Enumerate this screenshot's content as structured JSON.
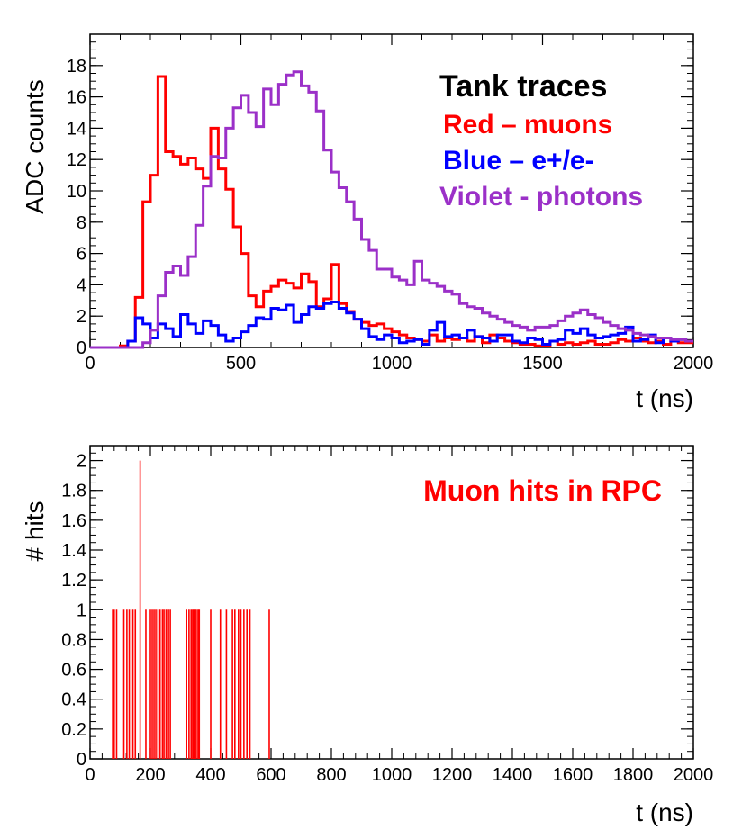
{
  "chart_data": [
    {
      "type": "line",
      "style": "step-histogram",
      "title": "",
      "xlabel": "t (ns)",
      "ylabel": "ADC counts",
      "xlim": [
        0,
        2000
      ],
      "ylim": [
        0,
        20
      ],
      "x_ticks": [
        0,
        500,
        1000,
        1500,
        2000
      ],
      "y_ticks": [
        0,
        2,
        4,
        6,
        8,
        10,
        12,
        14,
        16,
        18
      ],
      "bin_width": 25,
      "legend": {
        "title": "Tank traces",
        "entries": [
          {
            "label": "Red – muons",
            "color": "#ff0000"
          },
          {
            "label": "Blue – e+/e-",
            "color": "#0000ff"
          },
          {
            "label": "Violet - photons",
            "color": "#9b30c8"
          }
        ],
        "placement": "top-right"
      },
      "series": [
        {
          "name": "muons",
          "color": "#ff0000",
          "values": [
            0,
            0,
            0,
            0,
            0.1,
            0.4,
            3.2,
            9.3,
            11.0,
            17.3,
            12.5,
            12.2,
            11.7,
            12.1,
            11.4,
            10.8,
            14.0,
            11.4,
            10.1,
            7.7,
            6.0,
            3.3,
            2.6,
            3.6,
            3.9,
            4.3,
            4.1,
            3.8,
            4.7,
            4.2,
            2.6,
            3.1,
            5.3,
            2.8,
            2.3,
            1.8,
            1.6,
            1.4,
            1.5,
            1.2,
            1.0,
            0.8,
            0.6,
            0.5,
            0.4,
            0.8,
            0.4,
            0.6,
            0.5,
            0.6,
            0.4,
            0.7,
            0.3,
            0.8,
            0.6,
            0.4,
            0.3,
            0.2,
            0.2,
            0.1,
            0.1,
            0.4,
            0.2,
            0.3,
            0.2,
            0.3,
            0.4,
            0.2,
            0.2,
            0.3,
            0.5,
            0.4,
            0.6,
            0.4,
            0.3,
            0.4,
            0.2,
            0.4,
            0.3,
            0.3
          ]
        },
        {
          "name": "e+/e-",
          "color": "#0000ff",
          "values": [
            0,
            0,
            0,
            0,
            0,
            0.4,
            1.9,
            1.5,
            0.6,
            1.5,
            1.2,
            0.7,
            2.1,
            1.5,
            0.9,
            1.7,
            1.4,
            0.8,
            0.4,
            0.6,
            1.0,
            1.4,
            1.9,
            1.8,
            2.5,
            2.4,
            2.7,
            1.6,
            2.1,
            2.6,
            2.5,
            2.8,
            2.9,
            2.5,
            2.2,
            1.8,
            1.2,
            0.7,
            0.5,
            0.8,
            0.6,
            0.3,
            0.4,
            0.5,
            0.2,
            1.1,
            1.6,
            0.7,
            0.8,
            0.6,
            1.1,
            0.7,
            0.6,
            0.4,
            0.8,
            0.8,
            0.4,
            0.3,
            0.6,
            0.5,
            0.2,
            0.4,
            0.5,
            1.1,
            0.9,
            1.2,
            0.8,
            0.6,
            0.7,
            0.8,
            0.9,
            1.3,
            0.4,
            0.5,
            0.8,
            0.3,
            0.6,
            0.4,
            0.5,
            0.4
          ]
        },
        {
          "name": "photons",
          "color": "#9b30c8",
          "values": [
            0,
            0,
            0,
            0,
            0,
            0,
            0,
            0.3,
            1.1,
            3.3,
            4.8,
            5.2,
            4.6,
            5.8,
            7.8,
            10.3,
            12.2,
            12.1,
            14.0,
            15.3,
            16.1,
            15.0,
            14.1,
            16.5,
            15.5,
            16.8,
            17.4,
            17.6,
            16.7,
            16.3,
            15.1,
            12.6,
            11.2,
            10.2,
            9.3,
            8.2,
            6.9,
            6.2,
            5.0,
            5.0,
            4.5,
            4.3,
            4.0,
            5.5,
            4.3,
            4.1,
            3.9,
            3.6,
            3.4,
            2.8,
            2.6,
            2.5,
            2.2,
            2.0,
            1.8,
            1.6,
            1.4,
            1.3,
            1.1,
            1.3,
            1.3,
            1.4,
            1.7,
            2.0,
            2.2,
            2.4,
            2.1,
            1.9,
            1.6,
            1.4,
            1.2,
            1.1,
            0.9,
            0.8,
            0.7,
            0.6,
            0.6,
            0.5,
            0.5,
            0.4
          ]
        }
      ]
    },
    {
      "type": "bar",
      "style": "spikes",
      "title": "",
      "xlabel": "t (ns)",
      "ylabel": "# hits",
      "xlim": [
        0,
        2000
      ],
      "ylim": [
        0,
        2.1
      ],
      "x_ticks": [
        0,
        200,
        400,
        600,
        800,
        1000,
        1200,
        1400,
        1600,
        1800,
        2000
      ],
      "y_ticks": [
        0,
        0.2,
        0.4,
        0.6,
        0.8,
        1,
        1.2,
        1.4,
        1.6,
        1.8,
        2
      ],
      "annotation": {
        "text": "Muon hits in RPC",
        "color": "#ff0000",
        "placement": "top-right"
      },
      "series": [
        {
          "name": "Muon hits in RPC",
          "color": "#ff0000",
          "x": [
            75,
            80,
            88,
            112,
            122,
            130,
            142,
            150,
            166,
            185,
            200,
            206,
            212,
            218,
            225,
            232,
            240,
            245,
            252,
            260,
            266,
            320,
            328,
            335,
            340,
            344,
            348,
            352,
            358,
            362,
            400,
            432,
            452,
            472,
            480,
            492,
            500,
            510,
            520,
            530,
            594
          ],
          "values": [
            1,
            1,
            1,
            1,
            1,
            1,
            1,
            1,
            2,
            1,
            1,
            1,
            1,
            1,
            1,
            1,
            1,
            1,
            1,
            1,
            1,
            1,
            1,
            1,
            1,
            1,
            1,
            1,
            1,
            1,
            1,
            1,
            1,
            1,
            1,
            1,
            1,
            1,
            1,
            1,
            1
          ]
        }
      ]
    }
  ]
}
